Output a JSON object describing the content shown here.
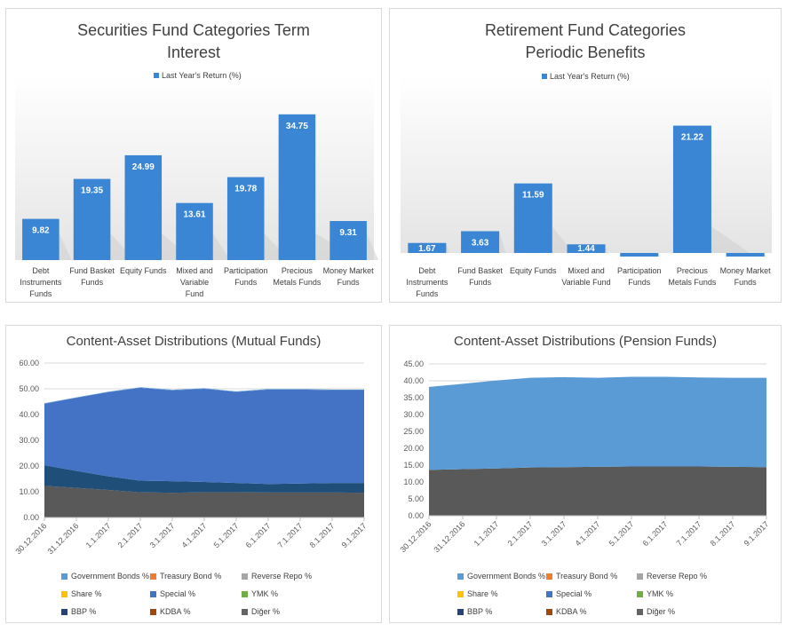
{
  "chart_data": [
    {
      "type": "bar",
      "title": "Securities Fund Categories Term Interest",
      "series": [
        {
          "name": "Last Year's Return (%)",
          "values": [
            9.82,
            19.35,
            24.99,
            13.61,
            19.78,
            34.75,
            9.31
          ]
        }
      ],
      "categories": [
        "Debt Instruments Funds",
        "Fund Basket Funds",
        "Equity Funds",
        "Mixed and Variable Fund",
        "Participation Funds",
        "Precious Metals Funds",
        "Money Market Funds"
      ],
      "value_labels": [
        "9.82",
        "19.35",
        "24.99",
        "13.61",
        "19.78",
        "34.75",
        "9.31"
      ],
      "color": "#3a86d4",
      "legend_position": "top",
      "ylim": [
        0,
        40
      ]
    },
    {
      "type": "bar",
      "title": "Retirement Fund Categories Periodic Benefits",
      "series": [
        {
          "name": "Last Year's Return (%)",
          "values": [
            1.67,
            3.63,
            11.59,
            1.44,
            -0.6,
            21.22,
            -0.6
          ]
        }
      ],
      "categories": [
        "Debt Instruments Funds",
        "Fund Basket Funds",
        "Equity Funds",
        "Mixed and Variable Fund",
        "Participation Funds",
        "Precious Metals Funds",
        "Money Market Funds"
      ],
      "value_labels": [
        "1.67",
        "3.63",
        "11.59",
        "1.44",
        "",
        "21.22",
        ""
      ],
      "color": "#3a86d4",
      "legend_position": "top",
      "ylim": [
        -2,
        25
      ]
    },
    {
      "type": "area",
      "stacked": true,
      "title": "Content-Asset Distributions (Mutual Funds)",
      "x": [
        "30.12.2016",
        "31.12.2016",
        "1.1.2017",
        "2.1.2017",
        "3.1.2017",
        "4.1.2017",
        "5.1.2017",
        "6.1.2017",
        "7.1.2017",
        "8.1.2017",
        "9.1.2017"
      ],
      "series": [
        {
          "name": "Diğer %",
          "color": "#595959",
          "values": [
            12.3,
            11.5,
            10.7,
            9.8,
            9.6,
            9.8,
            9.8,
            9.7,
            9.7,
            9.7,
            9.6
          ]
        },
        {
          "name": "BBP %",
          "color": "#1f4e79",
          "values": [
            8.0,
            6.6,
            5.3,
            4.5,
            4.5,
            4.0,
            3.6,
            3.3,
            3.5,
            3.7,
            3.8
          ]
        },
        {
          "name": "Special %",
          "color": "#4472c4",
          "values": [
            23.9,
            28.4,
            32.7,
            36.1,
            35.3,
            36.2,
            35.4,
            36.7,
            36.5,
            36.1,
            36.1
          ]
        },
        {
          "name": "Government Bonds %",
          "color": "#5b9bd5",
          "values": [
            0.2,
            0.2,
            0.2,
            0.2,
            0.2,
            0.2,
            0.2,
            0.2,
            0.2,
            0.2,
            0.2
          ]
        }
      ],
      "legend": [
        "Government Bonds %",
        "Treasury Bond %",
        "Reverse Repo %",
        "Share %",
        "Special %",
        "YMK %",
        "BBP %",
        "KDBA %",
        "Diğer %"
      ],
      "legend_colors": [
        "#5b9bd5",
        "#ed7d31",
        "#a5a5a5",
        "#ffc000",
        "#4472c4",
        "#70ad47",
        "#264478",
        "#9e480e",
        "#636363"
      ],
      "yticks": [
        "0.00",
        "10.00",
        "20.00",
        "30.00",
        "40.00",
        "50.00",
        "60.00"
      ],
      "ylim": [
        0,
        60
      ],
      "grid": true,
      "legend_position": "bottom"
    },
    {
      "type": "area",
      "stacked": true,
      "title": "Content-Asset Distributions (Pension Funds)",
      "x": [
        "30.12.2016",
        "31.12.2016",
        "1.1.2017",
        "2.1.2017",
        "3.1.2017",
        "4.1.2017",
        "5.1.2017",
        "6.1.2017",
        "7.1.2017",
        "8.1.2017",
        "9.1.2017"
      ],
      "series": [
        {
          "name": "Diğer %",
          "color": "#595959",
          "values": [
            13.6,
            13.8,
            14.0,
            14.3,
            14.4,
            14.5,
            14.6,
            14.6,
            14.6,
            14.5,
            14.4
          ]
        },
        {
          "name": "Government Bonds %",
          "color": "#5b9bd5",
          "values": [
            24.6,
            25.3,
            26.1,
            26.6,
            26.7,
            26.4,
            26.6,
            26.6,
            26.4,
            26.4,
            26.5
          ]
        }
      ],
      "legend": [
        "Government Bonds %",
        "Treasury Bond %",
        "Reverse Repo %",
        "Share %",
        "Special %",
        "YMK %",
        "BBP %",
        "KDBA %",
        "Diğer %"
      ],
      "legend_colors": [
        "#5b9bd5",
        "#ed7d31",
        "#a5a5a5",
        "#ffc000",
        "#4472c4",
        "#70ad47",
        "#264478",
        "#9e480e",
        "#636363"
      ],
      "yticks": [
        "0.00",
        "5.00",
        "10.00",
        "15.00",
        "20.00",
        "25.00",
        "30.00",
        "35.00",
        "40.00",
        "45.00"
      ],
      "ylim": [
        0,
        45
      ],
      "grid": true,
      "legend_position": "bottom"
    }
  ]
}
